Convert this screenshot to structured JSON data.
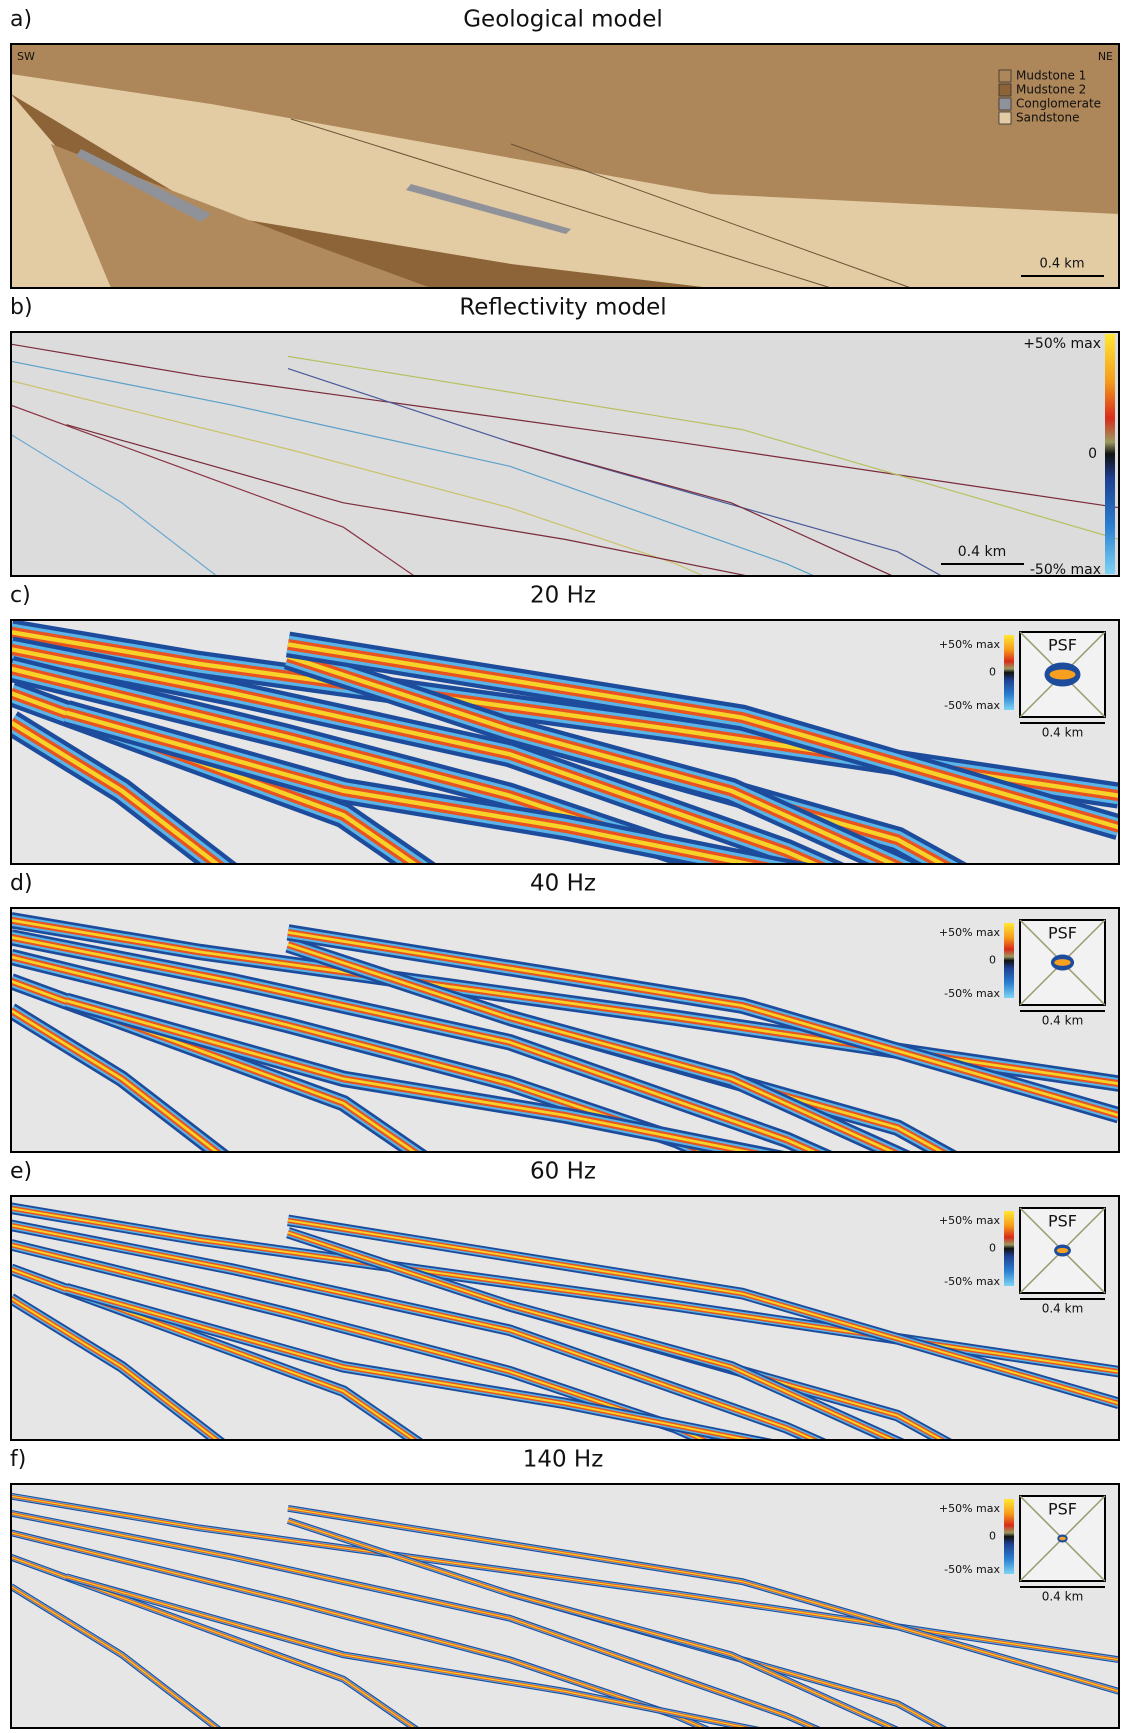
{
  "panels": [
    {
      "letter": "a)",
      "title": "Geological model",
      "side_labels": [
        "SW",
        "NE"
      ],
      "legend": [
        "Mudstone 1",
        "Mudstone 2",
        "Conglomerate",
        "Sandstone"
      ],
      "scale_bar": "0.4 km"
    },
    {
      "letter": "b)",
      "title": "Reflectivity model",
      "colorbar": {
        "top": "+50% max",
        "mid": "0",
        "bottom": "-50% max"
      },
      "scale_bar": "0.4 km"
    },
    {
      "letter": "c)",
      "title": "20 Hz",
      "colorbar": {
        "top": "+50% max",
        "mid": "0",
        "bottom": "-50% max"
      },
      "psf": "PSF",
      "scale_bar": "0.4 km"
    },
    {
      "letter": "d)",
      "title": "40 Hz",
      "colorbar": {
        "top": "+50% max",
        "mid": "0",
        "bottom": "-50% max"
      },
      "psf": "PSF",
      "scale_bar": "0.4 km"
    },
    {
      "letter": "e)",
      "title": "60 Hz",
      "colorbar": {
        "top": "+50% max",
        "mid": "0",
        "bottom": "-50% max"
      },
      "psf": "PSF",
      "scale_bar": "0.4 km"
    },
    {
      "letter": "f)",
      "title": "140 Hz",
      "colorbar": {
        "top": "+50% max",
        "mid": "0",
        "bottom": "-50% max"
      },
      "psf": "PSF",
      "scale_bar": "0.4 km"
    }
  ]
}
